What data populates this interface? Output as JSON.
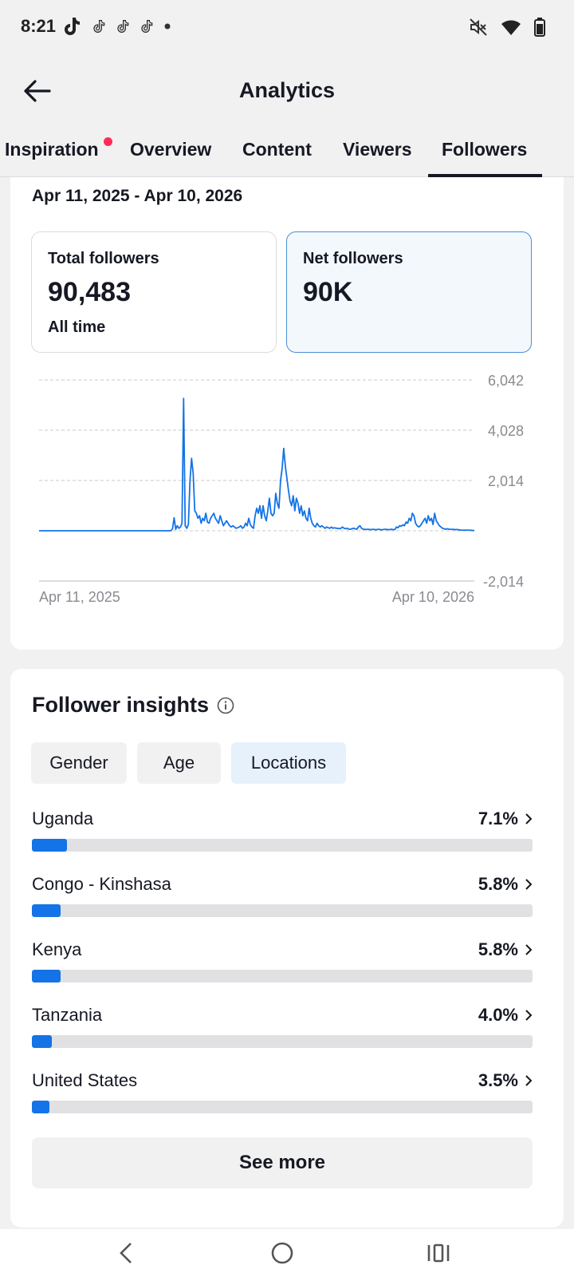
{
  "status_bar": {
    "time": "8:21",
    "left_icons": [
      "tiktok-icon",
      "tiktok-icon",
      "tiktok-icon",
      "tiktok-icon",
      "dot-icon"
    ],
    "right_icons": [
      "mute-icon",
      "wifi-icon",
      "battery-icon"
    ]
  },
  "header": {
    "title": "Analytics",
    "back_icon": "arrow-left-icon"
  },
  "tabs": [
    {
      "label": "Inspiration",
      "has_dot": true,
      "active": false
    },
    {
      "label": "Overview",
      "active": false
    },
    {
      "label": "Content",
      "active": false
    },
    {
      "label": "Viewers",
      "active": false
    },
    {
      "label": "Followers",
      "active": true
    }
  ],
  "followers_card": {
    "date_range": "Apr 11, 2025 - Apr 10, 2026",
    "total": {
      "label": "Total followers",
      "value": "90,483",
      "sub": "All time"
    },
    "net": {
      "label": "Net followers",
      "value": "90K",
      "selected": true
    }
  },
  "chart_data": {
    "type": "line",
    "title": "",
    "xlabel": "",
    "ylabel": "",
    "x_range": [
      "Apr 11, 2025",
      "Apr 10, 2026"
    ],
    "x_tick_labels": [
      "Apr 11, 2025",
      "Apr 10, 2026"
    ],
    "y_tick_labels": [
      "6,042",
      "4,028",
      "2,014",
      "-2,014"
    ],
    "ylim": [
      -2014,
      6042
    ],
    "grid": true,
    "color": "#1473e6",
    "series": [
      {
        "values": [
          0,
          0,
          0,
          0,
          0,
          0,
          0,
          0,
          0,
          0,
          0,
          0,
          0,
          0,
          0,
          0,
          0,
          0,
          0,
          0,
          0,
          0,
          0,
          0,
          0,
          0,
          0,
          0,
          0,
          0,
          0,
          0,
          0,
          0,
          0,
          0,
          0,
          0,
          0,
          0,
          0,
          0,
          0,
          0,
          0,
          0,
          0,
          0,
          0,
          0,
          0,
          0,
          0,
          0,
          0,
          0,
          0,
          0,
          0,
          0,
          0,
          0,
          0,
          0,
          0,
          0,
          0,
          0,
          0,
          0,
          0,
          0,
          0,
          0,
          0,
          0,
          0,
          0,
          0,
          0,
          0,
          0,
          0,
          0,
          80,
          520,
          60,
          200,
          100,
          150,
          300,
          5300,
          200,
          100,
          250,
          2000,
          2900,
          2300,
          800,
          700,
          500,
          600,
          300,
          500,
          400,
          700,
          350,
          300,
          500,
          600,
          700,
          500,
          400,
          300,
          600,
          400,
          200,
          300,
          400,
          300,
          200,
          150,
          200,
          150,
          100,
          120,
          150,
          200,
          100,
          150,
          300,
          200,
          500,
          250,
          150,
          100,
          600,
          900,
          700,
          1000,
          500,
          1000,
          600,
          400,
          800,
          1300,
          700,
          600,
          700,
          1500,
          1100,
          900,
          2000,
          2500,
          3300,
          2600,
          2100,
          1600,
          1200,
          1000,
          1400,
          800,
          1300,
          1100,
          700,
          1000,
          600,
          800,
          500,
          400,
          900,
          500,
          300,
          200,
          150,
          300,
          200,
          150,
          200,
          150,
          100,
          150,
          120,
          100,
          150,
          100,
          120,
          100,
          100,
          80,
          100,
          150,
          100,
          80,
          100,
          60,
          60,
          80,
          100,
          80,
          60,
          150,
          200,
          100,
          60,
          60,
          50,
          60,
          50,
          40,
          60,
          50,
          40,
          50,
          60,
          40,
          40,
          50,
          60,
          50,
          40,
          50,
          60,
          40,
          50,
          150,
          120,
          200,
          180,
          240,
          200,
          350,
          300,
          500,
          400,
          700,
          600,
          300,
          200,
          150,
          200,
          300,
          400,
          500,
          300,
          600,
          400,
          500,
          250,
          700,
          400,
          300,
          200,
          150,
          100,
          80,
          60,
          80,
          60,
          60,
          50,
          60,
          40,
          50,
          40,
          30,
          30,
          20,
          30,
          20,
          30,
          20,
          20,
          10,
          10
        ]
      }
    ]
  },
  "insights_card": {
    "title": "Follower insights",
    "info_icon": "info-icon",
    "chips": [
      {
        "label": "Gender",
        "active": false
      },
      {
        "label": "Age",
        "active": false
      },
      {
        "label": "Locations",
        "active": true
      }
    ],
    "locations": [
      {
        "name": "Uganda",
        "pct_label": "7.1%",
        "pct": 7.1
      },
      {
        "name": "Congo - Kinshasa",
        "pct_label": "5.8%",
        "pct": 5.8
      },
      {
        "name": "Kenya",
        "pct_label": "5.8%",
        "pct": 5.8
      },
      {
        "name": "Tanzania",
        "pct_label": "4.0%",
        "pct": 4.0
      },
      {
        "name": "United States",
        "pct_label": "3.5%",
        "pct": 3.5
      }
    ],
    "see_more": "See more"
  },
  "nav_bar": {
    "icons": [
      "back-nav-icon",
      "home-nav-icon",
      "recents-nav-icon"
    ]
  }
}
